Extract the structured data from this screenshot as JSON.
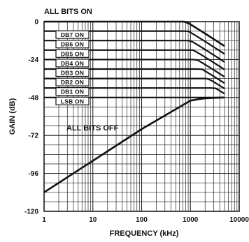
{
  "chart_data": {
    "type": "line",
    "title": "",
    "xlabel": "FREQUENCY (kHz)",
    "ylabel": "GAIN (dB)",
    "x_scale": "log",
    "xlim": [
      1,
      10000
    ],
    "ylim": [
      -120,
      0
    ],
    "x_ticks": [
      "1",
      "10",
      "100",
      "1000",
      "10000"
    ],
    "y_ticks": [
      "0",
      "-24",
      "-48",
      "-72",
      "-96",
      "-120"
    ],
    "grid": true,
    "annotations": [
      "ALL BITS ON",
      "ALL BITS OFF"
    ],
    "series": [
      {
        "name": "ALL BITS ON",
        "level": 0,
        "corner_khz": 800
      },
      {
        "name": "DB7 ON",
        "level": -6,
        "corner_khz": 900
      },
      {
        "name": "DB6 ON",
        "level": -12,
        "corner_khz": 1000
      },
      {
        "name": "DB5 ON",
        "level": -18,
        "corner_khz": 1150
      },
      {
        "name": "DB4 ON",
        "level": -24,
        "corner_khz": 1350
      },
      {
        "name": "DB3 ON",
        "level": -30,
        "corner_khz": 1700
      },
      {
        "name": "DB2 ON",
        "level": -36,
        "corner_khz": 2300
      },
      {
        "name": "DB1 ON",
        "level": -42,
        "corner_khz": 3200
      },
      {
        "name": "LSB ON",
        "level": -48,
        "corner_khz": 5000
      },
      {
        "name": "ALL BITS OFF",
        "x": [
          1,
          10,
          100,
          1000,
          1500,
          2000,
          3000,
          5000
        ],
        "y": [
          -108,
          -88,
          -68,
          -50,
          -49,
          -48.5,
          -48.2,
          -48
        ]
      }
    ]
  }
}
